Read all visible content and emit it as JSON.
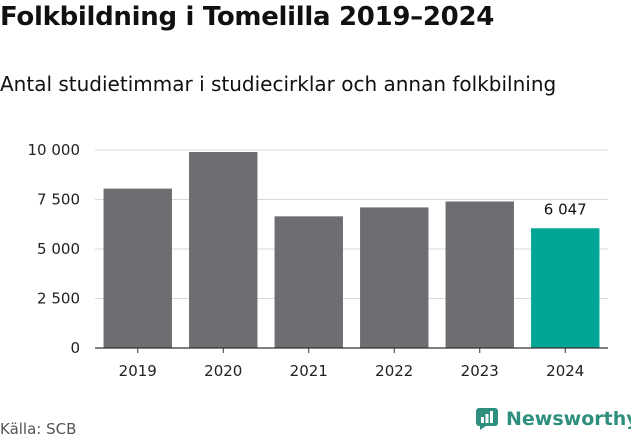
{
  "title": "Folkbildning i Tomelilla 2019–2024",
  "subtitle": "Antal studietimmar i studiecirklar och annan folkbilning",
  "source": "Källa: SCB",
  "brand": {
    "name": "Newsworthy",
    "icon": "newsworthy-logo-icon",
    "color": "#2f8f7f"
  },
  "chart_data": {
    "type": "bar",
    "categories": [
      "2019",
      "2020",
      "2021",
      "2022",
      "2023",
      "2024"
    ],
    "values": [
      8050,
      9900,
      6650,
      7100,
      7400,
      6047
    ],
    "ylim": [
      0,
      10000
    ],
    "yticks": [
      0,
      2500,
      5000,
      7500,
      10000
    ],
    "ytick_labels": [
      "0",
      "2 500",
      "5 000",
      "7 500",
      "10 000"
    ],
    "grid": true,
    "colors": {
      "default": "#6e6d72",
      "highlight": "#00a596"
    },
    "highlight_index": 5,
    "data_labels": [
      {
        "index": 5,
        "text": "6 047"
      }
    ]
  }
}
